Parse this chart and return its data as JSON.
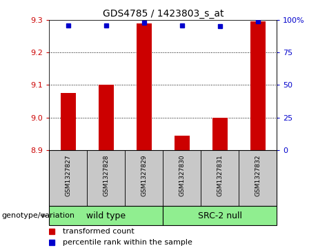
{
  "title": "GDS4785 / 1423803_s_at",
  "samples": [
    "GSM1327827",
    "GSM1327828",
    "GSM1327829",
    "GSM1327830",
    "GSM1327831",
    "GSM1327832"
  ],
  "red_values": [
    9.075,
    9.1,
    9.29,
    8.945,
    9.0,
    9.295
  ],
  "blue_values": [
    96,
    96,
    98,
    96,
    95,
    99
  ],
  "ylim_left": [
    8.9,
    9.3
  ],
  "ylim_right": [
    0,
    100
  ],
  "yticks_left": [
    8.9,
    9.0,
    9.1,
    9.2,
    9.3
  ],
  "yticks_right": [
    0,
    25,
    50,
    75,
    100
  ],
  "groups": [
    {
      "label": "wild type",
      "color": "#90EE90",
      "start": 0,
      "end": 3
    },
    {
      "label": "SRC-2 null",
      "color": "#90EE90",
      "start": 3,
      "end": 6
    }
  ],
  "group_label": "genotype/variation",
  "legend_red": "transformed count",
  "legend_blue": "percentile rank within the sample",
  "bar_color": "#CC0000",
  "dot_color": "#0000CC",
  "sample_bg_color": "#C8C8C8",
  "bar_width": 0.4,
  "grid_yticks": [
    9.0,
    9.1,
    9.2
  ]
}
